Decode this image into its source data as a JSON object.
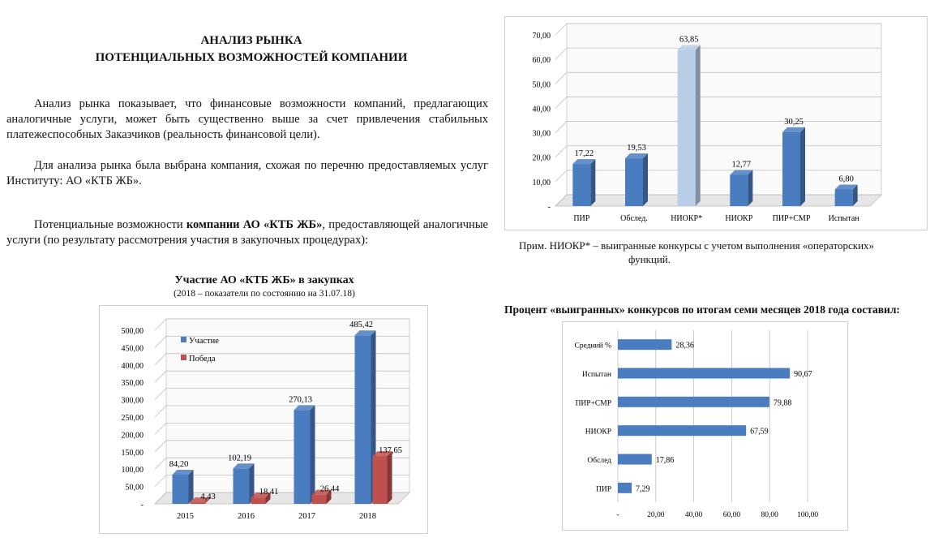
{
  "doc": {
    "title_line1": "АНАЛИЗ РЫНКА",
    "title_line2": "ПОТЕНЦИАЛЬНЫХ ВОЗМОЖНОСТЕЙ КОМПАНИИ",
    "para1": "Анализ рынка показывает, что финансовые возможности компаний, предлагающих аналогичные услуги, может быть существенно выше за счет привлечения стабильных платежеспособных Заказчиков (реальность финансовой цели).",
    "para2": "Для анализа рынка была выбрана компания, схожая по перечню предоставляемых услуг Институту: АО «КТБ ЖБ».",
    "para3_start": "Потенциальные возможности ",
    "para3_bold": "компании АО «КТБ ЖБ»",
    "para3_end": ", предоставляющей аналогичные услуги (по результату рассмотрения участия в закупочных процедурах):",
    "note_line1": "Прим. НИОКР* – выигранные конкурсы с учетом выполнения «операторских»",
    "note_line2": "функций.",
    "hbar_heading": "Процент «выигранных» конкурсов по итогам семи месяцев 2018 года составил:",
    "left_chart_title": "Участие АО «КТБ ЖБ» в закупках",
    "left_chart_subtitle": "(2018 – показатели по состоянию на 31.07.18)"
  },
  "colors": {
    "blue": "#4a7cc0",
    "blue_light": "#b8cde6",
    "red": "#c0504d",
    "grid": "#bfbfbf"
  },
  "chart_data": [
    {
      "type": "bar",
      "id": "services",
      "categories": [
        "ПИР",
        "Обслед.",
        "НИОКР*",
        "НИОКР",
        "ПИР+СМР",
        "Испытан"
      ],
      "values": [
        17.22,
        19.53,
        63.85,
        12.77,
        30.25,
        6.8
      ],
      "value_labels": [
        "17,22",
        "19,53",
        "63,85",
        "12,77",
        "30,25",
        "6,80"
      ],
      "highlight_index": 2,
      "ylim": [
        0,
        70
      ],
      "yticks": [
        "-",
        "10,00",
        "20,00",
        "30,00",
        "40,00",
        "50,00",
        "60,00",
        "70,00"
      ],
      "grid": true
    },
    {
      "type": "bar",
      "id": "purchases",
      "categories": [
        "2015",
        "2016",
        "2017",
        "2018"
      ],
      "series": [
        {
          "name": "Участие",
          "values": [
            84.2,
            102.19,
            270.13,
            485.42
          ],
          "labels": [
            "84,20",
            "102,19",
            "270,13",
            "485,42"
          ]
        },
        {
          "name": "Победа",
          "values": [
            4.43,
            18.41,
            26.44,
            137.65
          ],
          "labels": [
            "4,43",
            "18,41",
            "26,44",
            "137,65"
          ]
        }
      ],
      "ylim": [
        0,
        500
      ],
      "yticks": [
        "-",
        "50,00",
        "100,00",
        "150,00",
        "200,00",
        "250,00",
        "300,00",
        "350,00",
        "400,00",
        "450,00",
        "500,00"
      ],
      "legend": "top-left",
      "grid": true
    },
    {
      "type": "bar",
      "id": "win_percent",
      "orientation": "horizontal",
      "categories": [
        "Средний %",
        "Испытан",
        "ПИР+СМР",
        "НИОКР",
        "Обслед",
        "ПИР"
      ],
      "values": [
        28.36,
        90.67,
        79.88,
        67.59,
        17.86,
        7.29
      ],
      "value_labels": [
        "28,36",
        "90,67",
        "79,88",
        "67,59",
        "17,86",
        "7,29"
      ],
      "xlim": [
        0,
        100
      ],
      "xticks": [
        "-",
        "20,00",
        "40,00",
        "60,00",
        "80,00",
        "100,00"
      ],
      "grid": true
    }
  ]
}
